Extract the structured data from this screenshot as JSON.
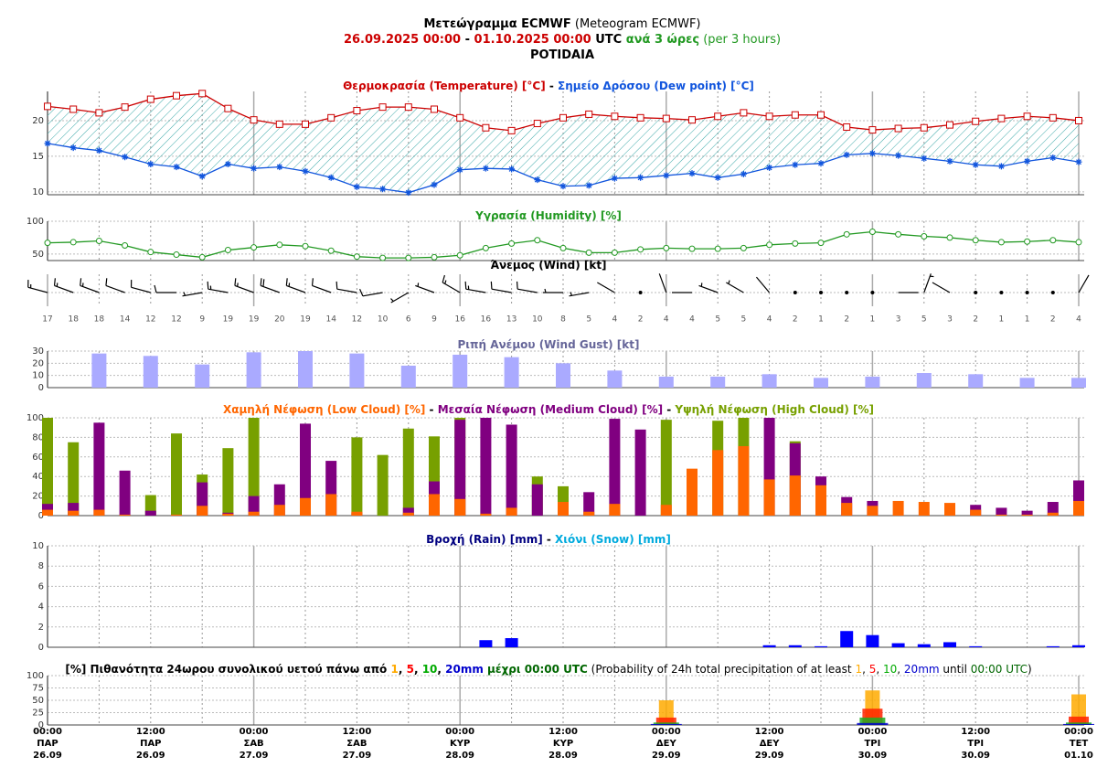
{
  "header": {
    "lines": [
      [
        {
          "text": "Μετεώγραμμα ECMWF",
          "bold": true
        },
        {
          "text": " (Meteogram ECMWF)"
        }
      ],
      [
        {
          "text": "26.09.2025 00:00",
          "color": "#cc0000",
          "bold": true
        },
        {
          "text": " - ",
          "bold": true
        },
        {
          "text": "01.10.2025 00:00",
          "color": "#cc0000",
          "bold": true
        },
        {
          "text": " UTC",
          "bold": true
        },
        {
          "text": " ανά 3 ώρες",
          "color": "#229922",
          "bold": true
        },
        {
          "text": " (per 3 hours)",
          "color": "#229922"
        }
      ],
      [
        {
          "text": "POTIDAIA",
          "bold": true
        }
      ]
    ]
  },
  "x_axis": {
    "categories": [
      [
        "00:00",
        "ΠΑΡ",
        "26.09"
      ],
      null,
      null,
      null,
      [
        "12:00",
        "ΠΑΡ",
        "26.09"
      ],
      null,
      null,
      null,
      [
        "00:00",
        "ΣΑΒ",
        "27.09"
      ],
      null,
      null,
      null,
      [
        "12:00",
        "ΣΑΒ",
        "27.09"
      ],
      null,
      null,
      null,
      [
        "00:00",
        "ΚΥΡ",
        "28.09"
      ],
      null,
      null,
      null,
      [
        "12:00",
        "ΚΥΡ",
        "28.09"
      ],
      null,
      null,
      null,
      [
        "00:00",
        "ΔΕΥ",
        "29.09"
      ],
      null,
      null,
      null,
      [
        "12:00",
        "ΔΕΥ",
        "29.09"
      ],
      null,
      null,
      null,
      [
        "00:00",
        "ΤΡΙ",
        "30.09"
      ],
      null,
      null,
      null,
      [
        "12:00",
        "ΤΡΙ",
        "30.09"
      ],
      null,
      null,
      null,
      [
        "00:00",
        "ΤΕΤ",
        "01.10"
      ]
    ]
  },
  "chart_data": [
    {
      "type": "line",
      "grid": true,
      "fill_between": true,
      "title": [
        {
          "text": "Θερμοκρασία (Temperature) [°C]",
          "color": "#cc0000",
          "bold": true
        },
        {
          "text": " - ",
          "bold": true
        },
        {
          "text": "Σημείο Δρόσου (Dew point) [°C]",
          "color": "#1155dd",
          "bold": true
        }
      ],
      "ylim": [
        9.6,
        24.1
      ],
      "yticks": [
        10,
        15,
        20
      ],
      "series": [
        {
          "color": "#cc0000",
          "marker": "square",
          "values": [
            22.0,
            21.6,
            21.1,
            21.9,
            23.0,
            23.5,
            23.8,
            21.7,
            20.1,
            19.5,
            19.5,
            20.4,
            21.4,
            21.9,
            21.9,
            21.6,
            20.4,
            19.0,
            18.6,
            19.6,
            20.4,
            20.9,
            20.6,
            20.4,
            20.3,
            20.1,
            20.6,
            21.1,
            20.6,
            20.8,
            20.8,
            19.1,
            18.7,
            18.9,
            19.0,
            19.4,
            19.9,
            20.3,
            20.6,
            20.4,
            20.0
          ]
        },
        {
          "color": "#1155dd",
          "marker": "star",
          "values": [
            16.8,
            16.2,
            15.8,
            14.9,
            13.9,
            13.5,
            12.2,
            13.9,
            13.3,
            13.5,
            12.9,
            12.0,
            10.7,
            10.4,
            9.9,
            11.0,
            13.1,
            13.3,
            13.2,
            11.7,
            10.8,
            10.9,
            11.9,
            12.0,
            12.3,
            12.6,
            12.0,
            12.5,
            13.4,
            13.8,
            14.0,
            15.2,
            15.4,
            15.1,
            14.7,
            14.3,
            13.8,
            13.6,
            14.3,
            14.8,
            14.2
          ]
        }
      ]
    },
    {
      "type": "line",
      "grid": true,
      "title": [
        {
          "text": "Υγρασία (Humidity) [%]",
          "color": "#229922",
          "bold": true
        }
      ],
      "ylim": [
        40,
        100
      ],
      "yticks": [
        50,
        100
      ],
      "series": [
        {
          "color": "#229922",
          "marker": "circle",
          "values": [
            67,
            68,
            70,
            63,
            53,
            49,
            45,
            56,
            60,
            64,
            62,
            55,
            46,
            44,
            44,
            45,
            48,
            59,
            66,
            71,
            59,
            52,
            52,
            57,
            59,
            58,
            58,
            59,
            64,
            66,
            67,
            80,
            84,
            80,
            77,
            75,
            71,
            68,
            69,
            71,
            68
          ]
        }
      ]
    },
    {
      "type": "wind",
      "grid": true,
      "title": [
        {
          "text": "Άνεμος (Wind) [kt]",
          "bold": true
        }
      ],
      "speed": [
        17,
        18,
        18,
        14,
        12,
        12,
        9,
        19,
        19,
        20,
        19,
        14,
        12,
        10,
        6,
        9,
        16,
        16,
        13,
        10,
        8,
        5,
        4,
        2,
        4,
        4,
        5,
        5,
        4,
        2,
        1,
        2,
        1,
        3,
        5,
        3,
        2,
        1,
        1,
        2,
        4
      ],
      "direction": [
        285,
        290,
        290,
        290,
        285,
        270,
        260,
        280,
        290,
        290,
        290,
        290,
        280,
        260,
        240,
        290,
        300,
        280,
        280,
        280,
        270,
        260,
        300,
        320,
        340,
        270,
        290,
        300,
        320,
        330,
        340,
        0,
        270,
        90,
        20,
        300,
        330,
        30,
        60,
        320,
        30
      ]
    },
    {
      "type": "bar",
      "grid": true,
      "bar_width": 16,
      "title": [
        {
          "text": "Ριπή Ανέμου (Wind Gust) [kt]",
          "color": "#666699",
          "bold": true
        }
      ],
      "ylim": [
        0,
        30
      ],
      "yticks": [
        0,
        10,
        20,
        30
      ],
      "series": [
        {
          "color": "#aaaaff",
          "values": [
            null,
            null,
            28,
            null,
            26,
            null,
            19,
            null,
            29,
            null,
            30,
            null,
            28,
            null,
            18,
            null,
            27,
            null,
            25,
            null,
            20,
            null,
            14,
            null,
            9,
            null,
            9,
            null,
            11,
            null,
            8,
            null,
            9,
            null,
            12,
            null,
            11,
            null,
            8,
            null,
            8
          ]
        }
      ]
    },
    {
      "type": "bar",
      "grid": true,
      "bar_width": 12,
      "overlay": true,
      "title": [
        {
          "text": "Χαμηλή Νέφωση (Low Cloud) [%]",
          "color": "#ff6600",
          "bold": true
        },
        {
          "text": " - ",
          "bold": true
        },
        {
          "text": "Μεσαία Νέφωση (Medium Cloud) [%]",
          "color": "#800080",
          "bold": true
        },
        {
          "text": " - ",
          "bold": true
        },
        {
          "text": "Υψηλή Νέφωση (High Cloud) [%]",
          "color": "#77a000",
          "bold": true
        }
      ],
      "ylim": [
        0,
        100
      ],
      "yticks": [
        0,
        20,
        40,
        60,
        80,
        100
      ],
      "series": [
        {
          "color": "#ff6600",
          "values": [
            6,
            5,
            6,
            1,
            0,
            1,
            10,
            2,
            4,
            11,
            18,
            22,
            4,
            0,
            3,
            22,
            17,
            2,
            8,
            0,
            14,
            4,
            12,
            0,
            11,
            48,
            67,
            71,
            37,
            41,
            31,
            13,
            10,
            15,
            14,
            13,
            6,
            1,
            1,
            3,
            15
          ]
        },
        {
          "color": "#800080",
          "values": [
            12,
            13,
            95,
            46,
            5,
            0,
            34,
            3,
            20,
            32,
            94,
            56,
            3,
            0,
            8,
            35,
            98,
            100,
            93,
            32,
            0,
            24,
            99,
            88,
            0,
            0,
            0,
            0,
            100,
            74,
            40,
            19,
            15,
            0,
            0,
            0,
            11,
            8,
            5,
            14,
            36
          ]
        },
        {
          "color": "#77a000",
          "values": [
            100,
            75,
            0,
            0,
            21,
            84,
            42,
            69,
            100,
            0,
            0,
            0,
            80,
            62,
            89,
            81,
            100,
            0,
            0,
            40,
            30,
            0,
            0,
            0,
            98,
            0,
            97,
            100,
            0,
            76,
            0,
            0,
            0,
            0,
            0,
            0,
            0,
            0,
            0,
            0,
            0
          ]
        }
      ]
    },
    {
      "type": "bar",
      "grid": true,
      "bar_width": 14,
      "overlay": true,
      "title": [
        {
          "text": "Βροχή (Rain) [mm]",
          "color": "#000080",
          "bold": true
        },
        {
          "text": " - ",
          "bold": true
        },
        {
          "text": "Χιόνι (Snow) [mm]",
          "color": "#00aadd",
          "bold": true
        }
      ],
      "ylim": [
        0,
        10
      ],
      "yticks": [
        0,
        2,
        4,
        6,
        8,
        10
      ],
      "series": [
        {
          "color": "#0000ff",
          "values": [
            0,
            0,
            0,
            0,
            0,
            0,
            0,
            0,
            0,
            0,
            0,
            0,
            0,
            0,
            0,
            0,
            0,
            0.7,
            0.9,
            0,
            0,
            0,
            0,
            0,
            0,
            0,
            0,
            0,
            0.2,
            0.2,
            0.1,
            1.6,
            1.2,
            0.4,
            0.3,
            0.5,
            0.1,
            0,
            0,
            0.1,
            0.2
          ]
        },
        {
          "color": "#00aadd",
          "values": [
            0,
            0,
            0,
            0,
            0,
            0,
            0,
            0,
            0,
            0,
            0,
            0,
            0,
            0,
            0,
            0,
            0,
            0,
            0,
            0,
            0,
            0,
            0,
            0,
            0,
            0,
            0,
            0,
            0,
            0,
            0,
            0,
            0,
            0,
            0,
            0,
            0,
            0,
            0,
            0,
            0
          ]
        }
      ]
    },
    {
      "type": "probability",
      "grid": true,
      "title": [
        {
          "text": "[%] Πιθανότητα 24ωρου συνολικού υετού πάνω από ",
          "bold": true
        },
        {
          "text": "1",
          "color": "#ffaa00",
          "bold": true
        },
        {
          "text": ", ",
          "bold": true
        },
        {
          "text": "5",
          "color": "#ff0000",
          "bold": true
        },
        {
          "text": ", ",
          "bold": true
        },
        {
          "text": "10",
          "color": "#00aa00",
          "bold": true
        },
        {
          "text": ", ",
          "bold": true
        },
        {
          "text": "20mm",
          "color": "#0000cc",
          "bold": true
        },
        {
          "text": " μέχρι 00:00 UTC",
          "color": "#006600",
          "bold": true
        },
        {
          "text": " (Probability of 24h total precipitation of at least "
        },
        {
          "text": "1",
          "color": "#ffaa00"
        },
        {
          "text": ", "
        },
        {
          "text": "5",
          "color": "#ff0000"
        },
        {
          "text": ", "
        },
        {
          "text": "10",
          "color": "#00aa00"
        },
        {
          "text": ", "
        },
        {
          "text": "20mm",
          "color": "#0000cc"
        },
        {
          "text": " until "
        },
        {
          "text": "00:00 UTC",
          "color": "#006600"
        },
        {
          "text": ")"
        }
      ],
      "ylim": [
        0,
        100
      ],
      "yticks": [
        0,
        25,
        50,
        75,
        100
      ],
      "series": [
        {
          "color": "#ffaa00",
          "values": [
            null,
            null,
            null,
            null,
            null,
            null,
            null,
            null,
            null,
            null,
            null,
            null,
            null,
            null,
            null,
            null,
            null,
            null,
            null,
            null,
            null,
            null,
            null,
            null,
            50,
            null,
            null,
            null,
            null,
            null,
            null,
            null,
            70,
            null,
            null,
            null,
            null,
            null,
            null,
            null,
            62
          ]
        },
        {
          "color": "#ff2200",
          "values": [
            null,
            null,
            null,
            null,
            null,
            null,
            null,
            null,
            null,
            null,
            null,
            null,
            null,
            null,
            null,
            null,
            null,
            null,
            null,
            null,
            null,
            null,
            null,
            null,
            15,
            null,
            null,
            null,
            null,
            null,
            null,
            null,
            33,
            null,
            null,
            null,
            null,
            null,
            null,
            null,
            17
          ]
        },
        {
          "color": "#22aa22",
          "values": [
            null,
            null,
            null,
            null,
            null,
            null,
            null,
            null,
            null,
            null,
            null,
            null,
            null,
            null,
            null,
            null,
            null,
            null,
            null,
            null,
            null,
            null,
            null,
            null,
            5,
            null,
            null,
            null,
            null,
            null,
            null,
            null,
            15,
            null,
            null,
            null,
            null,
            null,
            null,
            null,
            5
          ]
        },
        {
          "color": "#0000cc",
          "values": [
            null,
            null,
            null,
            null,
            null,
            null,
            null,
            null,
            null,
            null,
            null,
            null,
            null,
            null,
            null,
            null,
            null,
            null,
            null,
            null,
            null,
            null,
            null,
            null,
            2,
            null,
            null,
            null,
            null,
            null,
            null,
            null,
            4,
            null,
            null,
            null,
            null,
            null,
            null,
            null,
            2
          ]
        }
      ]
    }
  ]
}
